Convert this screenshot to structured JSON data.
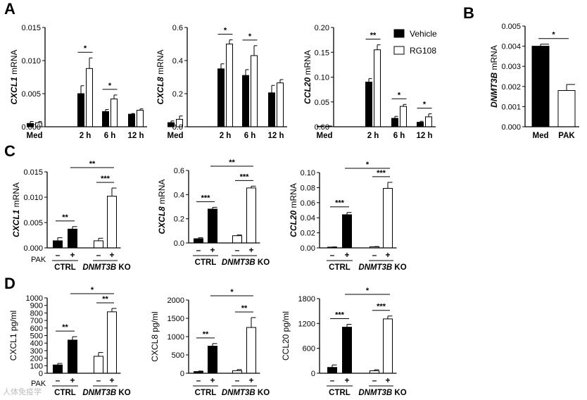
{
  "colors": {
    "vehicle": "#000000",
    "rg108": "#ffffff",
    "axis": "#000000"
  },
  "legend": {
    "vehicle": "Vehicle",
    "rg108": "RG108"
  },
  "labels": {
    "pak": "PAK",
    "minus": "–",
    "plus": "+",
    "ctrl": "CTRL",
    "ko_gene": "DNMT3B",
    "ko_suffix": " KO",
    "watermark": "人体免疫学"
  },
  "chart_data": [
    {
      "id": "A1",
      "panel": "A",
      "type": "bar",
      "ylabel_gene": "CXCL1",
      "ylabel_unit": " mRNA",
      "categories": [
        "Med",
        "2 h",
        "6 h",
        "12 h"
      ],
      "yticks": [
        "0.000",
        "0.005",
        "0.010",
        "0.015"
      ],
      "ylim": [
        0,
        0.015
      ],
      "series": [
        {
          "name": "Vehicle",
          "values": [
            0.0005,
            0.005,
            0.0023,
            0.0019
          ],
          "errors": [
            0.0003,
            0.0012,
            0.0003,
            0.0001
          ]
        },
        {
          "name": "RG108",
          "values": [
            0.0006,
            0.0088,
            0.0042,
            0.0025
          ],
          "errors": [
            0.0002,
            0.0016,
            0.0006,
            0.0002
          ]
        }
      ],
      "significance": [
        {
          "group": 1,
          "label": "*"
        },
        {
          "group": 2,
          "label": "*"
        }
      ]
    },
    {
      "id": "A2",
      "panel": "A",
      "type": "bar",
      "ylabel_gene": "CXCL8",
      "ylabel_unit": " mRNA",
      "categories": [
        "Med",
        "2 h",
        "6 h",
        "12 h"
      ],
      "yticks": [
        "0.0",
        "0.2",
        "0.4",
        "0.6"
      ],
      "ylim": [
        0,
        0.6
      ],
      "series": [
        {
          "name": "Vehicle",
          "values": [
            0.025,
            0.35,
            0.31,
            0.205
          ],
          "errors": [
            0.01,
            0.03,
            0.035,
            0.045
          ]
        },
        {
          "name": "RG108",
          "values": [
            0.045,
            0.5,
            0.43,
            0.265
          ],
          "errors": [
            0.02,
            0.025,
            0.06,
            0.02
          ]
        }
      ],
      "significance": [
        {
          "group": 1,
          "label": "*"
        },
        {
          "group": 2,
          "label": "*"
        }
      ]
    },
    {
      "id": "A3",
      "panel": "A",
      "type": "bar",
      "ylabel_gene": "CCL20",
      "ylabel_unit": " mRNA",
      "categories": [
        "Med",
        "2 h",
        "6 h",
        "12 h"
      ],
      "yticks": [
        "0.00",
        "0.05",
        "0.10",
        "0.15",
        "0.20"
      ],
      "ylim": [
        0,
        0.2
      ],
      "series": [
        {
          "name": "Vehicle",
          "values": [
            0.001,
            0.09,
            0.017,
            0.009
          ],
          "errors": [
            0.0005,
            0.007,
            0.004,
            0.002
          ]
        },
        {
          "name": "RG108",
          "values": [
            0.001,
            0.155,
            0.041,
            0.02
          ],
          "errors": [
            0.0005,
            0.01,
            0.004,
            0.006
          ]
        }
      ],
      "significance": [
        {
          "group": 1,
          "label": "**"
        },
        {
          "group": 2,
          "label": "*"
        },
        {
          "group": 3,
          "label": "*"
        }
      ]
    },
    {
      "id": "B",
      "panel": "B",
      "type": "bar",
      "ylabel_gene": "DNMT3B",
      "ylabel_unit": " mRNA",
      "categories": [
        "Med",
        "PAK"
      ],
      "yticks": [
        "0.000",
        "0.001",
        "0.002",
        "0.003",
        "0.004",
        "0.005"
      ],
      "ylim": [
        0,
        0.005
      ],
      "values": [
        0.004,
        0.0018
      ],
      "errors": [
        0.0001,
        0.0003
      ],
      "fills": [
        "vehicle",
        "rg108"
      ],
      "significance": [
        {
          "from": 0,
          "to": 1,
          "label": "*"
        }
      ]
    },
    {
      "id": "C1",
      "panel": "C",
      "type": "bar",
      "ylabel_gene": "CXCL1",
      "ylabel_unit": " mRNA",
      "yticks": [
        "0.000",
        "0.005",
        "0.010",
        "0.015"
      ],
      "ylim": [
        0,
        0.015
      ],
      "groups": [
        "CTRL",
        "DNMT3B KO"
      ],
      "pak": [
        "–",
        "+",
        "–",
        "+"
      ],
      "values": [
        0.0014,
        0.0037,
        0.0014,
        0.0102
      ],
      "errors": [
        0.0006,
        0.0005,
        0.0005,
        0.0016
      ],
      "significance": [
        {
          "from": 0,
          "to": 1,
          "label": "**"
        },
        {
          "from": 2,
          "to": 3,
          "label": "***"
        },
        {
          "from": 1,
          "to": 3,
          "label": "**"
        }
      ]
    },
    {
      "id": "C2",
      "panel": "C",
      "type": "bar",
      "ylabel_gene": "CXCL8",
      "ylabel_unit": " mRNA",
      "yticks": [
        "0.0",
        "0.2",
        "0.4",
        "0.6"
      ],
      "ylim": [
        0,
        0.6
      ],
      "groups": [
        "CTRL",
        "DNMT3B KO"
      ],
      "pak": [
        "–",
        "+",
        "–",
        "+"
      ],
      "values": [
        0.035,
        0.28,
        0.06,
        0.455
      ],
      "errors": [
        0.008,
        0.015,
        0.006,
        0.015
      ],
      "significance": [
        {
          "from": 0,
          "to": 1,
          "label": "***"
        },
        {
          "from": 2,
          "to": 3,
          "label": "***"
        },
        {
          "from": 1,
          "to": 3,
          "label": "**"
        }
      ]
    },
    {
      "id": "C3",
      "panel": "C",
      "type": "bar",
      "ylabel_gene": "CCL20",
      "ylabel_unit": " mRNA",
      "yticks": [
        "0.00",
        "0.02",
        "0.04",
        "0.06",
        "0.08",
        "0.10"
      ],
      "ylim": [
        0,
        0.1
      ],
      "groups": [
        "CTRL",
        "DNMT3B KO"
      ],
      "pak": [
        "–",
        "+",
        "–",
        "+"
      ],
      "values": [
        0.001,
        0.044,
        0.0015,
        0.079
      ],
      "errors": [
        0.0003,
        0.003,
        0.0003,
        0.008
      ],
      "significance": [
        {
          "from": 0,
          "to": 1,
          "label": "***"
        },
        {
          "from": 2,
          "to": 3,
          "label": "***"
        },
        {
          "from": 1,
          "to": 3,
          "label": "*"
        }
      ]
    },
    {
      "id": "D1",
      "panel": "D",
      "type": "bar",
      "ylabel": "CXCL1 pg/ml",
      "yticks": [
        "0",
        "100",
        "200",
        "300",
        "400",
        "500",
        "600",
        "700",
        "800",
        "900",
        "1000"
      ],
      "ylim": [
        0,
        1000
      ],
      "groups": [
        "CTRL",
        "DNMT3B KO"
      ],
      "pak": [
        "–",
        "+",
        "–",
        "+"
      ],
      "values": [
        110,
        440,
        225,
        815
      ],
      "errors": [
        20,
        45,
        50,
        45
      ],
      "significance": [
        {
          "from": 0,
          "to": 1,
          "label": "**"
        },
        {
          "from": 2,
          "to": 3,
          "label": "**"
        },
        {
          "from": 1,
          "to": 3,
          "label": "*"
        }
      ]
    },
    {
      "id": "D2",
      "panel": "D",
      "type": "bar",
      "ylabel": "CXCL8 pg/ml",
      "yticks": [
        "0",
        "500",
        "1000",
        "1500",
        "2000"
      ],
      "ylim": [
        0,
        2000
      ],
      "groups": [
        "CTRL",
        "DNMT3B KO"
      ],
      "pak": [
        "–",
        "+",
        "–",
        "+"
      ],
      "values": [
        45,
        740,
        70,
        1250
      ],
      "errors": [
        15,
        70,
        30,
        270
      ],
      "significance": [
        {
          "from": 0,
          "to": 1,
          "label": "**"
        },
        {
          "from": 2,
          "to": 3,
          "label": "**"
        },
        {
          "from": 1,
          "to": 3,
          "label": "*"
        }
      ]
    },
    {
      "id": "D3",
      "panel": "D",
      "type": "bar",
      "ylabel": "CCL20 pg/ml",
      "yticks": [
        "0",
        "600",
        "1200",
        "1800"
      ],
      "ylim": [
        0,
        1800
      ],
      "groups": [
        "CTRL",
        "DNMT3B KO"
      ],
      "pak": [
        "–",
        "+",
        "–",
        "+"
      ],
      "values": [
        140,
        1110,
        60,
        1310
      ],
      "errors": [
        60,
        70,
        25,
        70
      ],
      "significance": [
        {
          "from": 0,
          "to": 1,
          "label": "***"
        },
        {
          "from": 2,
          "to": 3,
          "label": "***"
        },
        {
          "from": 1,
          "to": 3,
          "label": "*"
        }
      ]
    }
  ]
}
